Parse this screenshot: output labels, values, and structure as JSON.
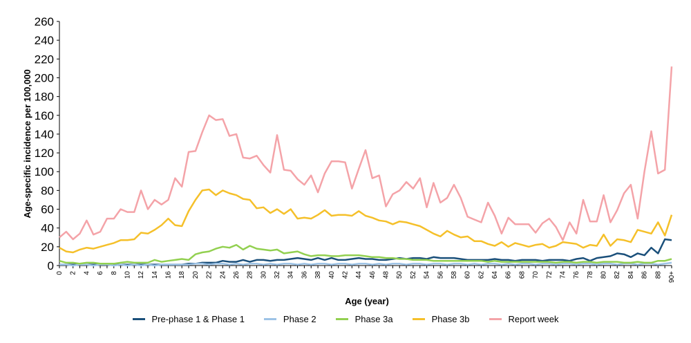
{
  "chart_data": {
    "type": "line",
    "xlabel": "Age (year)",
    "ylabel": "Age-specific incidence per 100,000",
    "ylim": [
      0,
      260
    ],
    "yticks": [
      0,
      20,
      40,
      60,
      80,
      100,
      120,
      140,
      160,
      180,
      200,
      220,
      240,
      260
    ],
    "x_tick_labels": [
      "0",
      "2",
      "4",
      "6",
      "8",
      "10",
      "12",
      "14",
      "16",
      "18",
      "20",
      "22",
      "24",
      "26",
      "28",
      "30",
      "32",
      "34",
      "36",
      "38",
      "40",
      "42",
      "44",
      "46",
      "48",
      "50",
      "52",
      "54",
      "56",
      "58",
      "60",
      "62",
      "64",
      "66",
      "68",
      "70",
      "72",
      "74",
      "76",
      "78",
      "80",
      "82",
      "84",
      "86",
      "88",
      "90+"
    ],
    "grid": false,
    "legend_position": "bottom",
    "series": [
      {
        "name": "Pre-phase 1 & Phase 1",
        "color": "#1a4f7a",
        "values": [
          1,
          1,
          1,
          1,
          1,
          1,
          1,
          1,
          1,
          1,
          1,
          1,
          1,
          1,
          1,
          1,
          1,
          1,
          1,
          2,
          2,
          3,
          3,
          3,
          5,
          4,
          4,
          6,
          4,
          6,
          6,
          5,
          6,
          6,
          7,
          8,
          7,
          6,
          8,
          6,
          8,
          6,
          6,
          7,
          8,
          7,
          7,
          6,
          6,
          7,
          8,
          7,
          8,
          8,
          7,
          9,
          8,
          8,
          8,
          7,
          6,
          6,
          6,
          6,
          7,
          6,
          6,
          5,
          6,
          6,
          6,
          5,
          6,
          6,
          6,
          5,
          7,
          8,
          5,
          8,
          9,
          10,
          13,
          12,
          9,
          13,
          11,
          19,
          13,
          28,
          27
        ]
      },
      {
        "name": "Phase 2",
        "color": "#9dc3e6",
        "values": [
          1,
          1,
          0,
          1,
          1,
          0,
          1,
          1,
          0,
          1,
          0,
          1,
          0,
          1,
          0,
          1,
          1,
          1,
          1,
          1,
          2,
          2,
          1,
          2,
          2,
          1,
          2,
          1,
          2,
          2,
          1,
          2,
          1,
          2,
          2,
          1,
          2,
          1,
          2,
          2,
          1,
          2,
          2,
          1,
          2,
          2,
          1,
          2,
          1,
          2,
          2,
          1,
          2,
          2,
          1,
          2,
          2,
          1,
          2,
          2,
          1,
          2,
          1,
          2,
          2,
          1,
          2,
          1,
          2,
          2,
          1,
          2,
          2,
          1,
          2,
          2,
          1,
          2,
          2,
          1,
          2,
          2,
          1,
          2,
          2,
          1,
          2,
          2,
          1,
          2,
          3
        ]
      },
      {
        "name": "Phase 3a",
        "color": "#92d050",
        "values": [
          5,
          3,
          3,
          2,
          3,
          3,
          2,
          2,
          2,
          3,
          4,
          3,
          3,
          3,
          6,
          4,
          5,
          6,
          7,
          6,
          12,
          14,
          15,
          18,
          20,
          19,
          22,
          17,
          21,
          18,
          17,
          16,
          17,
          13,
          14,
          15,
          12,
          10,
          11,
          11,
          10,
          10,
          11,
          11,
          11,
          10,
          9,
          9,
          8,
          8,
          7,
          7,
          6,
          6,
          6,
          5,
          5,
          5,
          5,
          5,
          5,
          5,
          5,
          4,
          5,
          4,
          4,
          4,
          4,
          4,
          4,
          4,
          4,
          3,
          4,
          4,
          3,
          4,
          4,
          3,
          4,
          4,
          4,
          3,
          3,
          4,
          3,
          3,
          5,
          5,
          7
        ]
      },
      {
        "name": "Phase 3b",
        "color": "#f5c02a",
        "values": [
          19,
          15,
          14,
          17,
          19,
          18,
          20,
          22,
          24,
          27,
          27,
          28,
          35,
          34,
          38,
          43,
          50,
          43,
          42,
          58,
          70,
          80,
          81,
          75,
          80,
          77,
          75,
          71,
          70,
          61,
          62,
          56,
          60,
          55,
          60,
          50,
          51,
          50,
          54,
          59,
          53,
          54,
          54,
          53,
          58,
          53,
          51,
          48,
          47,
          44,
          47,
          46,
          44,
          42,
          38,
          34,
          31,
          37,
          33,
          30,
          31,
          26,
          26,
          23,
          21,
          25,
          20,
          24,
          22,
          20,
          22,
          23,
          19,
          21,
          25,
          24,
          23,
          19,
          22,
          21,
          33,
          21,
          28,
          27,
          25,
          38,
          36,
          34,
          46,
          32,
          54
        ]
      },
      {
        "name": "Report week",
        "color": "#f4a3a8",
        "values": [
          30,
          36,
          28,
          34,
          48,
          33,
          36,
          50,
          50,
          60,
          57,
          57,
          80,
          60,
          70,
          65,
          70,
          93,
          84,
          121,
          122,
          142,
          160,
          155,
          156,
          138,
          140,
          115,
          114,
          117,
          107,
          99,
          139,
          102,
          101,
          92,
          86,
          96,
          78,
          98,
          111,
          111,
          110,
          82,
          103,
          123,
          93,
          96,
          63,
          76,
          80,
          89,
          82,
          93,
          62,
          88,
          67,
          72,
          86,
          72,
          52,
          49,
          46,
          67,
          53,
          34,
          51,
          44,
          44,
          44,
          35,
          45,
          50,
          41,
          27,
          46,
          34,
          70,
          47,
          47,
          75,
          46,
          59,
          77,
          86,
          50,
          100,
          143,
          98,
          102,
          212
        ]
      }
    ]
  }
}
